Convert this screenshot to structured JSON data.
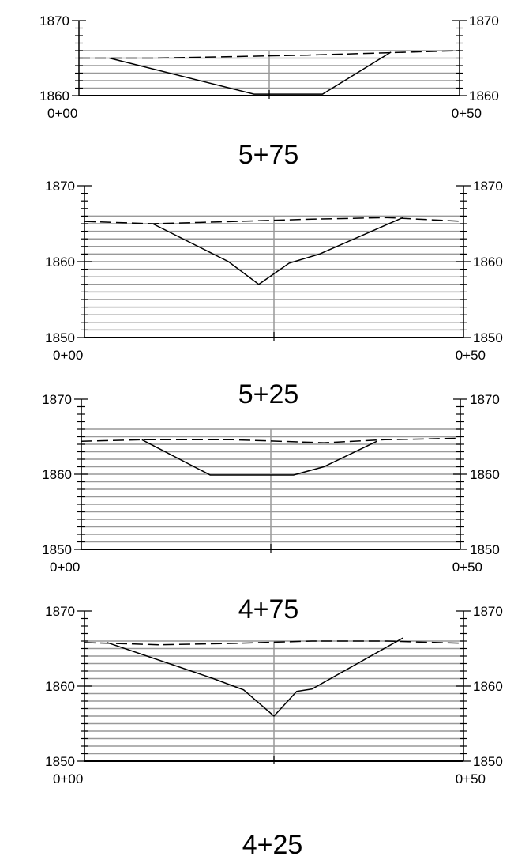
{
  "chart_data": [
    {
      "type": "line",
      "station_label": "",
      "x_ticks": [
        "0+00",
        "0+50"
      ],
      "xlim": [
        0,
        50
      ],
      "ylim": [
        1860,
        1870
      ],
      "y_ticks_left": [
        "1860",
        "1870"
      ],
      "y_ticks_right": [
        "1860",
        "1870"
      ],
      "grid": true,
      "series": [
        {
          "style": "solid",
          "x": [
            4,
            23,
            32,
            41
          ],
          "y": [
            1865.0,
            1860.2,
            1860.2,
            1865.8
          ]
        },
        {
          "style": "dashed",
          "x": [
            0,
            10,
            20,
            30,
            40,
            50
          ],
          "y": [
            1865.0,
            1865.0,
            1865.2,
            1865.4,
            1865.7,
            1866.0
          ]
        }
      ]
    },
    {
      "type": "line",
      "station_label": "5+75",
      "x_ticks": [
        "0+00",
        "0+50"
      ],
      "xlim": [
        0,
        50
      ],
      "ylim": [
        1850,
        1870
      ],
      "y_ticks_left": [
        "1850",
        "1860",
        "1870"
      ],
      "y_ticks_right": [
        "1850",
        "1860",
        "1870"
      ],
      "grid": true,
      "series": [
        {
          "style": "solid",
          "x": [
            9,
            19,
            23,
            27,
            31,
            42
          ],
          "y": [
            1865.0,
            1860.0,
            1857.0,
            1859.8,
            1861.0,
            1865.8
          ]
        },
        {
          "style": "dashed",
          "x": [
            0,
            9,
            20,
            30,
            40,
            50
          ],
          "y": [
            1865.3,
            1865.0,
            1865.3,
            1865.6,
            1865.8,
            1865.3
          ]
        }
      ]
    },
    {
      "type": "line",
      "station_label": "5+25",
      "x_ticks": [
        "0+00",
        "0+50"
      ],
      "xlim": [
        0,
        50
      ],
      "ylim": [
        1850,
        1870
      ],
      "y_ticks_left": [
        "1850",
        "1860",
        "1870"
      ],
      "y_ticks_right": [
        "1850",
        "1860",
        "1870"
      ],
      "grid": true,
      "series": [
        {
          "style": "solid",
          "x": [
            8,
            17,
            28,
            32,
            39
          ],
          "y": [
            1864.6,
            1859.9,
            1859.9,
            1861.0,
            1864.4
          ]
        },
        {
          "style": "dashed",
          "x": [
            0,
            8,
            20,
            32,
            40,
            50
          ],
          "y": [
            1864.4,
            1864.6,
            1864.6,
            1864.2,
            1864.6,
            1864.8
          ]
        }
      ]
    },
    {
      "type": "line",
      "station_label": "4+75",
      "x_ticks": [
        "0+00",
        "0+50"
      ],
      "xlim": [
        0,
        50
      ],
      "ylim": [
        1850,
        1870
      ],
      "y_ticks_left": [
        "1850",
        "1860",
        "1870"
      ],
      "y_ticks_right": [
        "1850",
        "1860",
        "1870"
      ],
      "grid": true,
      "series": [
        {
          "style": "solid",
          "x": [
            3,
            17,
            21,
            25,
            28,
            30,
            42
          ],
          "y": [
            1865.8,
            1861.0,
            1859.5,
            1856.0,
            1859.3,
            1859.6,
            1866.4
          ]
        },
        {
          "style": "dashed",
          "x": [
            0,
            10,
            20,
            30,
            40,
            50
          ],
          "y": [
            1865.8,
            1865.5,
            1865.7,
            1866.0,
            1866.0,
            1865.7
          ]
        }
      ]
    }
  ],
  "bottom_label": "4+25",
  "colors": {
    "axis": "#000000",
    "grid": "#999999",
    "line": "#000000"
  }
}
